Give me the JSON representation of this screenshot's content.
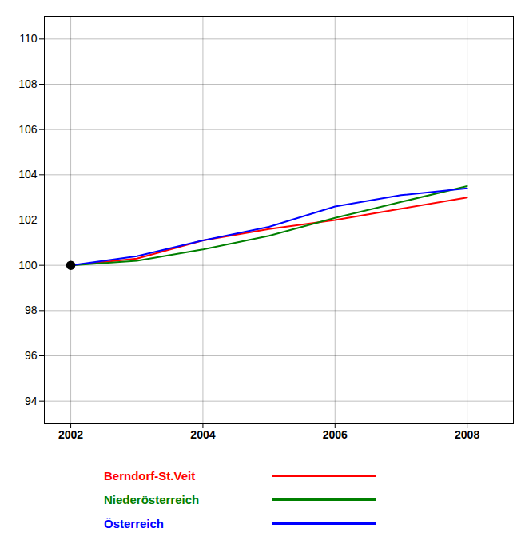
{
  "chart_data": {
    "type": "line",
    "x": [
      2002,
      2003,
      2004,
      2005,
      2006,
      2007,
      2008
    ],
    "series": [
      {
        "name": "Berndorf-St.Veit",
        "color": "#ff0000",
        "values": [
          100.0,
          100.3,
          101.1,
          101.6,
          102.0,
          102.5,
          103.0
        ]
      },
      {
        "name": "Niederösterreich",
        "color": "#008000",
        "values": [
          100.0,
          100.2,
          100.7,
          101.3,
          102.1,
          102.8,
          103.5
        ]
      },
      {
        "name": "Österreich",
        "color": "#0000ff",
        "values": [
          100.0,
          100.4,
          101.1,
          101.7,
          102.6,
          103.1,
          103.4
        ]
      }
    ],
    "highlight": {
      "x": 2002,
      "y": 100.0,
      "color": "#000000"
    },
    "xlim": [
      2001.6,
      2008.7
    ],
    "ylim": [
      93.0,
      111.0
    ],
    "xticks": [
      2002,
      2004,
      2006,
      2008
    ],
    "yticks": [
      94,
      96,
      98,
      100,
      102,
      104,
      106,
      108,
      110
    ],
    "grid": true,
    "legend": "bottom"
  }
}
